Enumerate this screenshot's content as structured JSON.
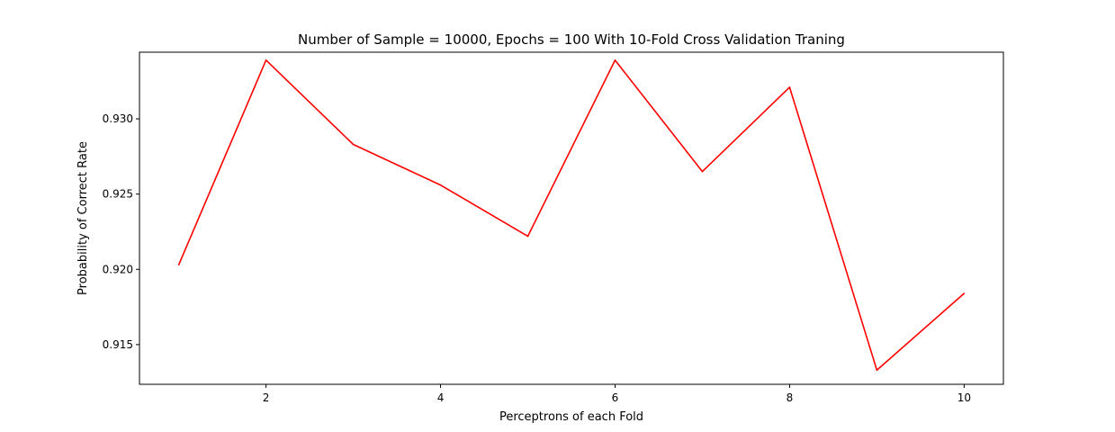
{
  "chart_data": {
    "type": "line",
    "title": "Number of Sample = 10000, Epochs = 100 With 10-Fold Cross Validation Traning",
    "xlabel": "Perceptrons of each Fold",
    "ylabel": "Probability of Correct Rate",
    "x": [
      1,
      2,
      3,
      4,
      5,
      6,
      7,
      8,
      9,
      10
    ],
    "series": [
      {
        "values": [
          0.9203,
          0.9339,
          0.9283,
          0.9256,
          0.9222,
          0.9339,
          0.9265,
          0.9321,
          0.9133,
          0.9184
        ],
        "color": "#ff0000"
      }
    ],
    "xlim": [
      0.55,
      10.45
    ],
    "ylim": [
      0.91236,
      0.93443
    ],
    "xticks": [
      2,
      4,
      6,
      8,
      10
    ],
    "xtick_labels": [
      "2",
      "4",
      "6",
      "8",
      "10"
    ],
    "yticks": [
      0.915,
      0.92,
      0.925,
      0.93
    ],
    "ytick_labels": [
      "0.915",
      "0.920",
      "0.925",
      "0.930"
    ],
    "grid": false,
    "legend": "none"
  }
}
